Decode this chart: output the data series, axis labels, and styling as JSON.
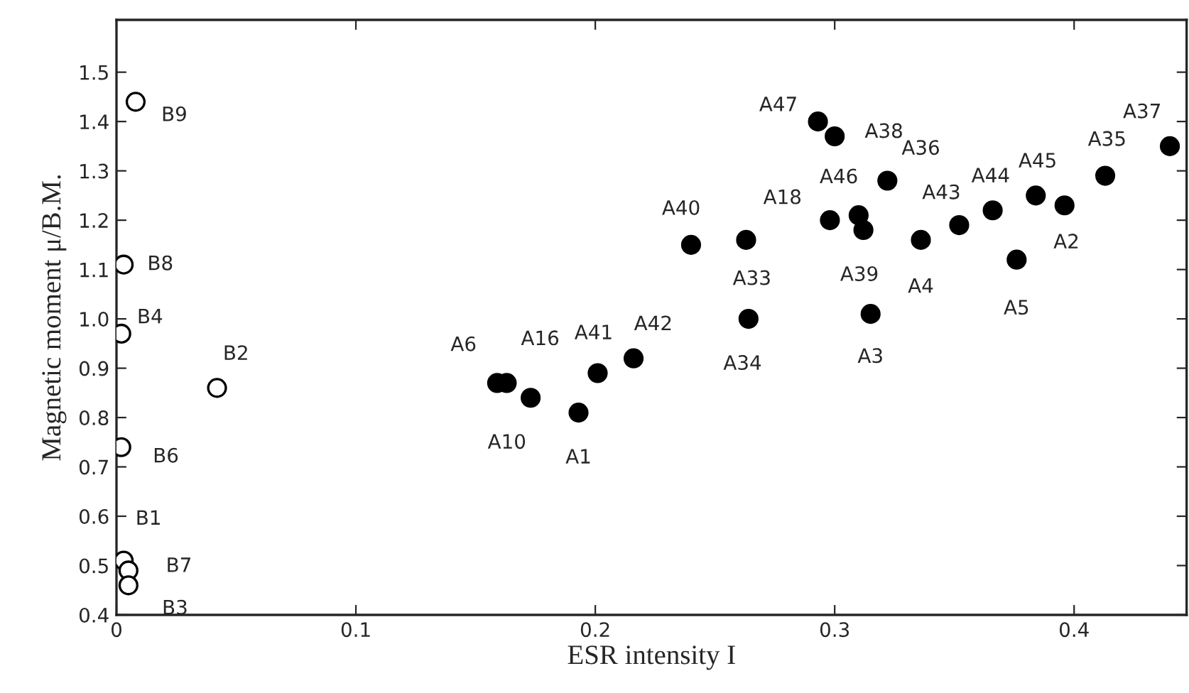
{
  "chart_data": {
    "type": "scatter",
    "xlabel": "ESR intensity I",
    "ylabel": "Magnetic moment μ/B.M.",
    "xlim": [
      0,
      0.447
    ],
    "ylim": [
      0.4,
      1.606
    ],
    "xticks": [
      0,
      0.1,
      0.2,
      0.3,
      0.4
    ],
    "yticks": [
      0.4,
      0.5,
      0.6,
      0.7,
      0.8,
      0.9,
      {
        "value": 1.0,
        "label": "1.0"
      },
      1.1,
      1.2,
      1.3,
      1.4,
      1.5
    ],
    "grid": false,
    "legend": false,
    "marker": "circle",
    "series": [
      {
        "color": "#ffffff",
        "x": [
          0.008,
          0.003,
          0.002,
          0.042,
          0.002,
          0.003,
          0.005,
          0.005
        ],
        "values": [
          1.44,
          1.11,
          0.97,
          0.86,
          0.74,
          0.51,
          0.49,
          0.46
        ]
      },
      {
        "color": "#000000",
        "x": [
          0.159,
          0.163,
          0.173,
          0.193,
          0.201,
          0.216,
          0.24,
          0.263,
          0.264,
          0.298,
          0.293,
          0.3,
          0.322,
          0.31,
          0.312,
          0.315,
          0.336,
          0.352,
          0.366,
          0.384,
          0.396,
          0.376,
          0.413,
          0.44
        ],
        "values": [
          0.87,
          0.87,
          0.84,
          0.81,
          0.89,
          0.92,
          1.15,
          1.16,
          1.0,
          1.2,
          1.4,
          1.37,
          1.28,
          1.21,
          1.18,
          1.01,
          1.16,
          1.19,
          1.22,
          1.25,
          1.23,
          1.12,
          1.29,
          1.35
        ]
      }
    ],
    "annotations": [
      {
        "text": "B9",
        "x": 0.008,
        "y": 1.44
      },
      {
        "text": "B8",
        "x": 0.003,
        "y": 1.11
      },
      {
        "text": "B4",
        "x": 0.002,
        "y": 0.97
      },
      {
        "text": "B2",
        "x": 0.042,
        "y": 0.86
      },
      {
        "text": "B6",
        "x": 0.002,
        "y": 0.74
      },
      {
        "text": "B1",
        "x": 0.003,
        "y": 0.51
      },
      {
        "text": "B7",
        "x": 0.005,
        "y": 0.49
      },
      {
        "text": "B3",
        "x": 0.005,
        "y": 0.46
      },
      {
        "text": "A6",
        "x": 0.159,
        "y": 0.87
      },
      {
        "text": "A16",
        "x": 0.163,
        "y": 0.87
      },
      {
        "text": "A10",
        "x": 0.173,
        "y": 0.84
      },
      {
        "text": "A1",
        "x": 0.193,
        "y": 0.81
      },
      {
        "text": "A41",
        "x": 0.201,
        "y": 0.89
      },
      {
        "text": "A42",
        "x": 0.216,
        "y": 0.92
      },
      {
        "text": "A40",
        "x": 0.24,
        "y": 1.15
      },
      {
        "text": "A33",
        "x": 0.263,
        "y": 1.16
      },
      {
        "text": "A34",
        "x": 0.264,
        "y": 1.0
      },
      {
        "text": "A18",
        "x": 0.298,
        "y": 1.2
      },
      {
        "text": "A47",
        "x": 0.293,
        "y": 1.4
      },
      {
        "text": "A38",
        "x": 0.3,
        "y": 1.37
      },
      {
        "text": "A36",
        "x": 0.322,
        "y": 1.28
      },
      {
        "text": "A46",
        "x": 0.31,
        "y": 1.21
      },
      {
        "text": "A39",
        "x": 0.312,
        "y": 1.18
      },
      {
        "text": "A3",
        "x": 0.315,
        "y": 1.01
      },
      {
        "text": "A4",
        "x": 0.336,
        "y": 1.16
      },
      {
        "text": "A43",
        "x": 0.352,
        "y": 1.19
      },
      {
        "text": "A44",
        "x": 0.366,
        "y": 1.22
      },
      {
        "text": "A45",
        "x": 0.384,
        "y": 1.25
      },
      {
        "text": "A2",
        "x": 0.396,
        "y": 1.23
      },
      {
        "text": "A5",
        "x": 0.376,
        "y": 1.12
      },
      {
        "text": "A35",
        "x": 0.413,
        "y": 1.29
      },
      {
        "text": "A37",
        "x": 0.44,
        "y": 1.35
      }
    ]
  }
}
